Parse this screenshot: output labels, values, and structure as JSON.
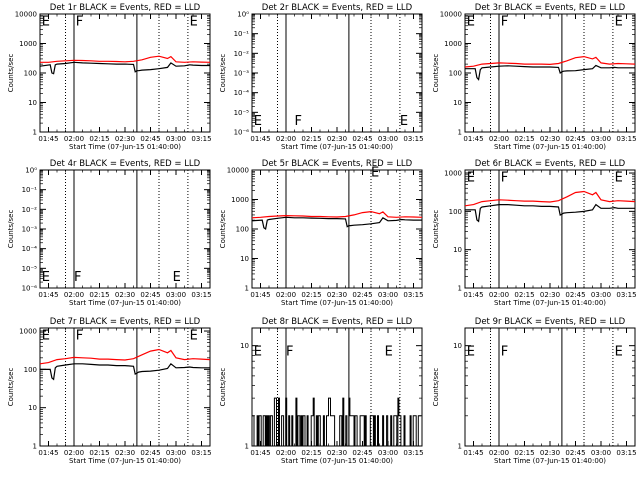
{
  "chart_data": {
    "type": "line",
    "xlabel": "Start Time (07-Jun-15 01:40:00)",
    "ylabel": "Counts/sec",
    "x_ticks": [
      "01:45",
      "02:00",
      "02:15",
      "02:30",
      "02:45",
      "03:00",
      "03:15"
    ],
    "x_range": [
      "01:40",
      "03:20"
    ],
    "y_scale": "log",
    "colors": {
      "events": "#000000",
      "lld": "#ff0000"
    },
    "series_names": [
      "BLACK = Events",
      "RED = LLD"
    ],
    "vlines": {
      "solid": [
        "02:00",
        "02:37"
      ],
      "dotted": [
        "01:55",
        "02:50",
        "03:07"
      ]
    },
    "events_x": [
      "01:40",
      "01:46",
      "01:47",
      "01:48",
      "01:49",
      "01:50",
      "01:55",
      "02:00",
      "02:05",
      "02:10",
      "02:15",
      "02:20",
      "02:25",
      "02:30",
      "02:35",
      "02:36",
      "02:37",
      "02:38",
      "02:40",
      "02:45",
      "02:50",
      "02:55",
      "02:57",
      "03:00",
      "03:05",
      "03:08",
      "03:10",
      "03:15",
      "03:20"
    ],
    "lld_x": [
      "01:40",
      "01:45",
      "01:50",
      "01:55",
      "02:00",
      "02:05",
      "02:10",
      "02:15",
      "02:20",
      "02:25",
      "02:30",
      "02:35",
      "02:40",
      "02:45",
      "02:50",
      "02:55",
      "02:57",
      "03:00",
      "03:05",
      "03:10",
      "03:15",
      "03:20"
    ],
    "panels": [
      {
        "title": "Det 1r  BLACK = Events, RED = LLD",
        "y_ticks": [
          "1",
          "10",
          "100",
          "1000",
          "10000"
        ],
        "ylim": [
          1,
          10000
        ],
        "events": [
          170,
          190,
          100,
          95,
          190,
          200,
          210,
          230,
          220,
          215,
          210,
          205,
          200,
          200,
          195,
          110,
          120,
          120,
          125,
          130,
          140,
          155,
          220,
          170,
          175,
          190,
          185,
          180,
          180
        ],
        "lld": [
          230,
          230,
          250,
          260,
          270,
          265,
          260,
          250,
          250,
          245,
          240,
          250,
          280,
          340,
          370,
          310,
          360,
          240,
          230,
          240,
          235,
          230
        ],
        "letters": [
          {
            "text": "E",
            "x": "01:41",
            "y": 6000
          },
          {
            "text": "F",
            "x": "02:01",
            "y": 6000
          },
          {
            "text": "E",
            "x": "03:08",
            "y": 6000
          }
        ]
      },
      {
        "title": "Det 2r  BLACK = Events, RED = LLD",
        "y_ticks": [
          "10⁻⁶",
          "10⁻⁵",
          "10⁻⁴",
          "10⁻³",
          "10⁻²",
          "10⁻¹",
          "10⁰"
        ],
        "ylim": [
          1e-06,
          1
        ],
        "events": [],
        "lld": [],
        "letters": [
          {
            "text": "E",
            "x": "01:41",
            "y": 4e-06
          },
          {
            "text": "F",
            "x": "02:05",
            "y": 4e-06
          },
          {
            "text": "E",
            "x": "03:07",
            "y": 4e-06
          }
        ]
      },
      {
        "title": "Det 3r  BLACK = Events, RED = LLD",
        "y_ticks": [
          "1",
          "10",
          "100",
          "1000",
          "10000"
        ],
        "ylim": [
          1,
          10000
        ],
        "events": [
          140,
          140,
          70,
          60,
          130,
          150,
          160,
          170,
          175,
          170,
          165,
          160,
          160,
          160,
          155,
          100,
          110,
          115,
          118,
          120,
          130,
          140,
          180,
          150,
          150,
          155,
          150,
          150,
          150
        ],
        "lld": [
          160,
          170,
          200,
          210,
          220,
          215,
          210,
          200,
          200,
          200,
          195,
          210,
          260,
          330,
          360,
          300,
          340,
          220,
          200,
          210,
          205,
          200
        ],
        "letters": [
          {
            "text": "E",
            "x": "01:41",
            "y": 6000
          },
          {
            "text": "F",
            "x": "02:01",
            "y": 6000
          },
          {
            "text": "E",
            "x": "03:08",
            "y": 6000
          }
        ]
      },
      {
        "title": "Det 4r  BLACK = Events, RED = LLD",
        "y_ticks": [
          "10⁻⁶",
          "10⁻⁵",
          "10⁻⁴",
          "10⁻³",
          "10⁻²",
          "10⁻¹",
          "10⁰"
        ],
        "ylim": [
          1e-06,
          1
        ],
        "events": [],
        "lld": [],
        "letters": [
          {
            "text": "E",
            "x": "01:41",
            "y": 4e-06
          },
          {
            "text": "F",
            "x": "02:00",
            "y": 4e-06
          },
          {
            "text": "E",
            "x": "02:58",
            "y": 4e-06
          }
        ]
      },
      {
        "title": "Det 5r  BLACK = Events, RED = LLD",
        "y_ticks": [
          "1",
          "10",
          "100",
          "1000",
          "10000"
        ],
        "ylim": [
          1,
          10000
        ],
        "events": [
          190,
          200,
          110,
          100,
          200,
          210,
          230,
          250,
          240,
          240,
          235,
          230,
          225,
          225,
          220,
          120,
          130,
          130,
          135,
          140,
          150,
          165,
          240,
          190,
          195,
          210,
          205,
          200,
          200
        ],
        "lld": [
          240,
          250,
          265,
          275,
          285,
          280,
          275,
          265,
          265,
          260,
          255,
          265,
          300,
          360,
          390,
          330,
          380,
          260,
          250,
          260,
          255,
          250
        ],
        "letters": [
          {
            "text": "E",
            "x": "02:50",
            "y": 9000
          }
        ]
      },
      {
        "title": "Det 6r  BLACK = Events, RED = LLD",
        "y_ticks": [
          "1",
          "10",
          "100",
          "1000"
        ],
        "ylim": [
          1,
          1200
        ],
        "events": [
          110,
          110,
          60,
          55,
          120,
          130,
          140,
          150,
          150,
          145,
          140,
          140,
          135,
          135,
          130,
          80,
          85,
          90,
          92,
          95,
          100,
          110,
          150,
          120,
          120,
          125,
          120,
          120,
          120
        ],
        "lld": [
          140,
          150,
          180,
          190,
          200,
          195,
          190,
          185,
          185,
          180,
          175,
          190,
          240,
          310,
          330,
          270,
          310,
          200,
          180,
          190,
          185,
          180
        ],
        "letters": [
          {
            "text": "E",
            "x": "01:41",
            "y": 800
          },
          {
            "text": "F",
            "x": "02:01",
            "y": 800
          },
          {
            "text": "E",
            "x": "03:08",
            "y": 800
          }
        ]
      },
      {
        "title": "Det 7r  BLACK = Events, RED = LLD",
        "y_ticks": [
          "1",
          "10",
          "100",
          "1000"
        ],
        "ylim": [
          1,
          1200
        ],
        "events": [
          100,
          100,
          60,
          55,
          110,
          120,
          130,
          140,
          140,
          135,
          130,
          130,
          125,
          125,
          120,
          75,
          80,
          85,
          88,
          90,
          95,
          105,
          140,
          110,
          112,
          115,
          112,
          110,
          110
        ],
        "lld": [
          140,
          150,
          180,
          190,
          205,
          200,
          195,
          185,
          185,
          180,
          175,
          190,
          240,
          300,
          330,
          270,
          310,
          200,
          180,
          190,
          185,
          180
        ],
        "letters": [
          {
            "text": "E",
            "x": "01:41",
            "y": 800
          },
          {
            "text": "F",
            "x": "02:01",
            "y": 800
          },
          {
            "text": "E",
            "x": "03:08",
            "y": 800
          }
        ]
      },
      {
        "title": "Det 8r  BLACK = Events, RED = LLD",
        "y_ticks": [
          "1",
          "10"
        ],
        "ylim": [
          1,
          15
        ],
        "events": [],
        "lld": [],
        "noise_levels": [
          1,
          2,
          3
        ],
        "letters": [
          {
            "text": "E",
            "x": "01:41",
            "y": 9
          },
          {
            "text": "F",
            "x": "02:00",
            "y": 9
          },
          {
            "text": "E",
            "x": "02:58",
            "y": 9
          }
        ]
      },
      {
        "title": "Det 9r  BLACK = Events, RED = LLD",
        "y_ticks": [
          "1",
          "10"
        ],
        "ylim": [
          1,
          15
        ],
        "events": [],
        "lld": [],
        "letters": [
          {
            "text": "E",
            "x": "01:41",
            "y": 9
          },
          {
            "text": "F",
            "x": "02:01",
            "y": 9
          },
          {
            "text": "E",
            "x": "03:08",
            "y": 9
          }
        ]
      }
    ]
  }
}
